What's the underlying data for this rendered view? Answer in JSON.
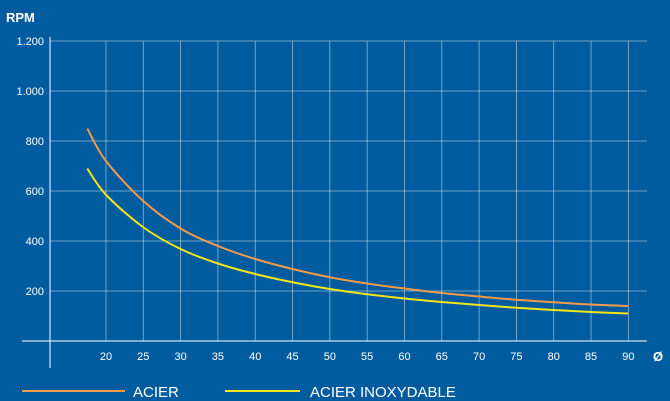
{
  "chart_data": {
    "type": "line",
    "ylabel": "RPM",
    "xlabel": "Ø",
    "xlim": [
      12.5,
      92.5
    ],
    "ylim": [
      0,
      1200
    ],
    "x_ticks": [
      20,
      25,
      30,
      35,
      40,
      45,
      50,
      55,
      60,
      65,
      70,
      75,
      80,
      85,
      90
    ],
    "y_ticks": [
      200,
      400,
      600,
      800,
      1000,
      1200
    ],
    "y_tick_labels": [
      "200",
      "400",
      "600",
      "800",
      "1.000",
      "1.200"
    ],
    "grid": true,
    "legend_position": "bottom",
    "series": [
      {
        "name": "ACIER",
        "color": "#f29a4a",
        "x": [
          17.5,
          20,
          25,
          30,
          35,
          40,
          45,
          50,
          55,
          60,
          65,
          70,
          75,
          80,
          85,
          90
        ],
        "y": [
          850,
          720,
          560,
          450,
          380,
          328,
          288,
          255,
          230,
          210,
          192,
          178,
          165,
          155,
          146,
          140
        ]
      },
      {
        "name": "ACIER INOXYDABLE",
        "color": "#f2e51a",
        "x": [
          17.5,
          20,
          25,
          30,
          35,
          40,
          45,
          50,
          55,
          60,
          65,
          70,
          75,
          80,
          85,
          90
        ],
        "y": [
          690,
          585,
          455,
          368,
          310,
          268,
          235,
          208,
          187,
          170,
          156,
          144,
          133,
          124,
          116,
          110
        ]
      }
    ]
  }
}
